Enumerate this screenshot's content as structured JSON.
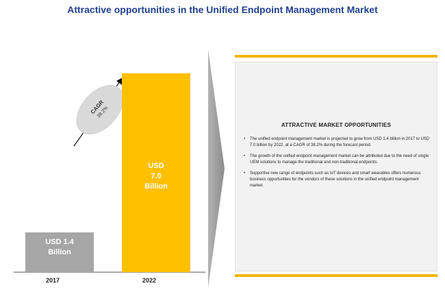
{
  "title": "Attractive opportunities in the Unified Endpoint Management Market",
  "chart_data": {
    "type": "bar",
    "categories": [
      "2017",
      "2022"
    ],
    "values": [
      1.4,
      7.0
    ],
    "bar_labels": [
      "USD  1.4\nBillion",
      "USD\n7.0\nBillion"
    ],
    "colors": [
      "#a6a6a6",
      "#ffc000"
    ],
    "unit": "USD Billion",
    "cagr_label": "CAGR",
    "cagr_value": "38.2%"
  },
  "panel": {
    "heading": "ATTRACTIVE MARKET OPPORTUNITIES",
    "bullets": [
      "The unified endpoint management market is projected to grow from USD 1.4 billion in 2017 to USD 7.0 billion by 2022, at a CAGR of 38.2% during the forecast period.",
      "The growth of the unified endpoint management market can be attributed due to the need of single UEM solutions to manage the traditional and non-traditional endpoints.",
      "Supportive new range of endpoints such as IoT devices and smart wearables offers numerous business opportunities for the vendors of these solutions in the unified endpoint management market."
    ],
    "accent_color": "#f0b400"
  },
  "bullet_glyph": "•"
}
